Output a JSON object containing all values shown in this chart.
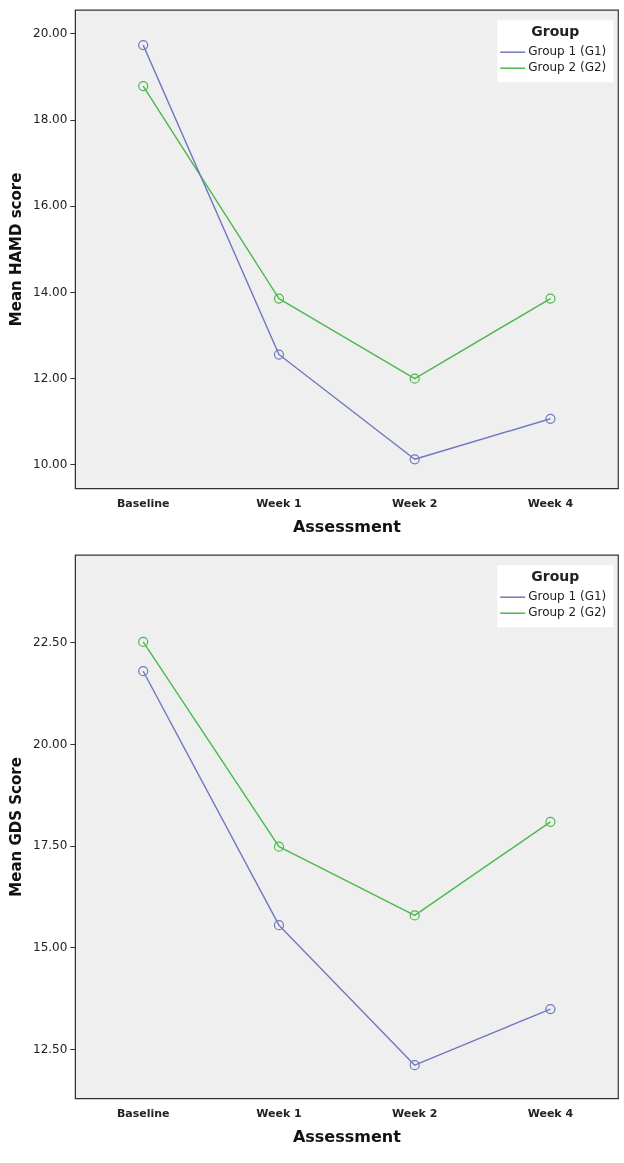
{
  "chart_data": [
    {
      "type": "line",
      "xlabel": "Assessment",
      "ylabel": "Mean HAMD score",
      "legend_title": "Group",
      "legend": "top right",
      "marker": "circle",
      "line_style": "solid",
      "grid": false,
      "categories": [
        "Baseline",
        "Week 1",
        "Week 2",
        "Week 4"
      ],
      "ylim": [
        9.45,
        20.55
      ],
      "yticks": [
        {
          "value": 10,
          "label": "10.00"
        },
        {
          "value": 12,
          "label": "12.00"
        },
        {
          "value": 14,
          "label": "14.00"
        },
        {
          "value": 16,
          "label": "16.00"
        },
        {
          "value": 18,
          "label": "18.00"
        },
        {
          "value": 20,
          "label": "20.00"
        }
      ],
      "series": [
        {
          "name": "Group 1 (G1)",
          "color": "#6f78c0",
          "values": [
            19.74,
            12.56,
            10.13,
            11.07
          ]
        },
        {
          "name": "Group 2 (G2)",
          "color": "#4cb84c",
          "values": [
            18.79,
            13.86,
            12.0,
            13.86
          ]
        }
      ]
    },
    {
      "type": "line",
      "xlabel": "Assessment",
      "ylabel": "Mean GDS Score",
      "legend_title": "Group",
      "legend": "top right",
      "marker": "circle",
      "line_style": "solid",
      "grid": false,
      "categories": [
        "Baseline",
        "Week 1",
        "Week 2",
        "Week 4"
      ],
      "ylim": [
        11.3,
        24.65
      ],
      "yticks": [
        {
          "value": 12.5,
          "label": "12.50"
        },
        {
          "value": 15,
          "label": "15.00"
        },
        {
          "value": 17.5,
          "label": "17.50"
        },
        {
          "value": 20,
          "label": "20.00"
        },
        {
          "value": 22.5,
          "label": "22.50"
        }
      ],
      "series": [
        {
          "name": "Group 1 (G1)",
          "color": "#6f78c0",
          "values": [
            21.8,
            15.56,
            12.12,
            13.5
          ]
        },
        {
          "name": "Group 2 (G2)",
          "color": "#4cb84c",
          "values": [
            22.52,
            17.49,
            15.8,
            18.1
          ]
        }
      ]
    }
  ]
}
